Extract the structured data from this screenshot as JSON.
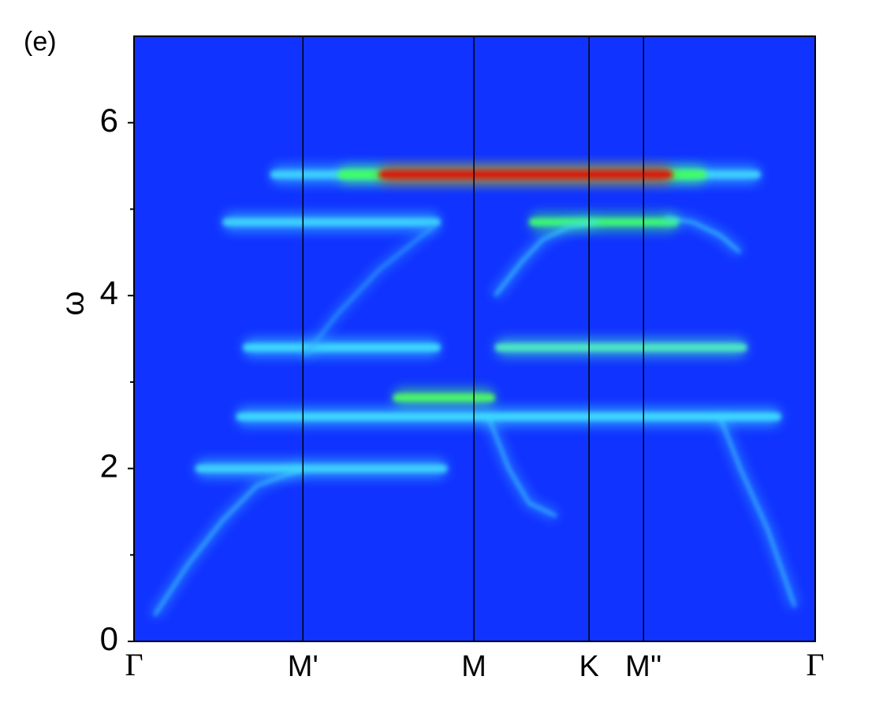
{
  "chart_data": {
    "type": "spectral",
    "panel_label": "(e)",
    "ylabel": "ω",
    "xlim": [
      0,
      1
    ],
    "xticks": [
      {
        "value": 0,
        "label": "Γ"
      },
      {
        "value": 0.248,
        "label": "M'"
      },
      {
        "value": 0.499,
        "label": "M"
      },
      {
        "value": 0.668,
        "label": "K"
      },
      {
        "value": 0.748,
        "label": "M''"
      },
      {
        "value": 1,
        "label": "Γ"
      }
    ],
    "ylim": [
      0,
      7
    ],
    "yticks": [
      0,
      2,
      4,
      6
    ],
    "minor_yticks": [
      1,
      3,
      5
    ],
    "background": "#1133ff",
    "bands": [
      {
        "y": 5.4,
        "x": [
          0.2,
          0.92
        ],
        "color": "#40d8ff"
      },
      {
        "y": 5.4,
        "x": [
          0.3,
          0.84
        ],
        "color": "#40ff60"
      },
      {
        "y": 5.4,
        "x": [
          0.36,
          0.79
        ],
        "color": "#e01010"
      },
      {
        "y": 4.85,
        "x": [
          0.13,
          0.45
        ],
        "color": "#40d8ff"
      },
      {
        "y": 4.85,
        "x": [
          0.58,
          0.8
        ],
        "color": "#40ff70"
      },
      {
        "y": 3.4,
        "x": [
          0.16,
          0.45
        ],
        "color": "#40e0ff"
      },
      {
        "y": 3.4,
        "x": [
          0.53,
          0.9
        ],
        "color": "#50f0c0"
      },
      {
        "y": 2.82,
        "x": [
          0.38,
          0.53
        ],
        "color": "#50ff60"
      },
      {
        "y": 2.6,
        "x": [
          0.15,
          0.95
        ],
        "color": "#40e0ff"
      },
      {
        "y": 2.0,
        "x": [
          0.09,
          0.46
        ],
        "color": "#40d8ff"
      }
    ],
    "series": [
      {
        "x": [
          0.03,
          0.08,
          0.13,
          0.18,
          0.248
        ],
        "values": [
          0.3,
          0.9,
          1.4,
          1.8,
          2.0
        ],
        "color": "#40d8ff"
      },
      {
        "x": [
          0.97,
          0.93,
          0.89,
          0.86
        ],
        "values": [
          0.4,
          1.3,
          2.0,
          2.6
        ],
        "color": "#40d8ff"
      },
      {
        "x": [
          0.53,
          0.57,
          0.6,
          0.64,
          0.68
        ],
        "values": [
          4.0,
          4.4,
          4.65,
          4.8,
          4.85
        ],
        "color": "#40e0ff"
      },
      {
        "x": [
          0.78,
          0.82,
          0.86,
          0.89
        ],
        "values": [
          4.9,
          4.85,
          4.7,
          4.5
        ],
        "color": "#40e0ff"
      },
      {
        "x": [
          0.25,
          0.3,
          0.36,
          0.44
        ],
        "values": [
          3.3,
          3.8,
          4.3,
          4.8
        ],
        "color": "#30b0ff"
      },
      {
        "x": [
          0.52,
          0.55,
          0.58,
          0.62
        ],
        "values": [
          2.6,
          2.0,
          1.6,
          1.45
        ],
        "color": "#40d8ff"
      }
    ]
  }
}
